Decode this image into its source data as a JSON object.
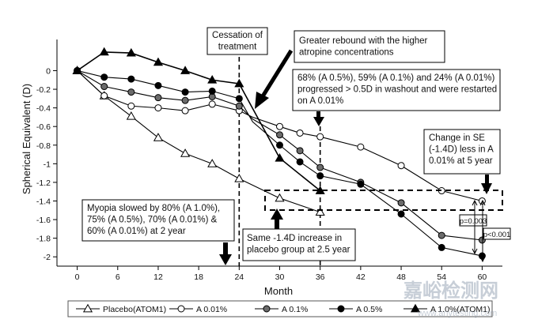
{
  "chart_data": {
    "type": "line",
    "xlabel": "Month",
    "ylabel": "Spherical Equivalent (D)",
    "xlim": [
      -3,
      63
    ],
    "ylim": [
      -2.1,
      0.25
    ],
    "x_ticks": [
      0,
      6,
      12,
      18,
      24,
      30,
      36,
      42,
      48,
      54,
      60
    ],
    "y_ticks": [
      0,
      -0.2,
      -0.4,
      -0.6,
      -0.8,
      -1,
      -1.2,
      -1.4,
      -1.6,
      -1.8,
      -2
    ],
    "y_tick_labels": [
      "0",
      "-0.2",
      "-0.4",
      "-0.6",
      "-0.8",
      "-1",
      "-1.2",
      "-1.4",
      "-1.6",
      "-1.8",
      "-2"
    ],
    "grid": false,
    "legend_position": "bottom",
    "series": [
      {
        "name": "Placebo(ATOM1)",
        "marker": "triangle-open",
        "x": [
          0,
          4,
          8,
          12,
          16,
          20,
          24,
          30,
          36
        ],
        "y": [
          0,
          -0.27,
          -0.49,
          -0.72,
          -0.89,
          -1.0,
          -1.16,
          -1.37,
          -1.52
        ]
      },
      {
        "name": "A 0.01%",
        "marker": "circle-open",
        "x": [
          0,
          4,
          8,
          12,
          16,
          20,
          24,
          26,
          30,
          33,
          36,
          42,
          48,
          54,
          60
        ],
        "y": [
          0,
          -0.27,
          -0.38,
          -0.4,
          -0.43,
          -0.36,
          -0.43,
          -0.5,
          -0.6,
          -0.67,
          -0.71,
          -0.82,
          -1.02,
          -1.29,
          -1.4
        ]
      },
      {
        "name": "A 0.1%",
        "marker": "circle-gray",
        "x": [
          0,
          4,
          8,
          12,
          16,
          20,
          24,
          26,
          30,
          33,
          36,
          42,
          48,
          54,
          60
        ],
        "y": [
          0,
          -0.17,
          -0.23,
          -0.29,
          -0.32,
          -0.28,
          -0.38,
          -0.52,
          -0.69,
          -0.86,
          -1.04,
          -1.2,
          -1.42,
          -1.77,
          -1.82
        ]
      },
      {
        "name": "A 0.5%",
        "marker": "circle-filled",
        "x": [
          0,
          4,
          8,
          12,
          16,
          20,
          24,
          26,
          30,
          33,
          36,
          42,
          48,
          54,
          60
        ],
        "y": [
          0,
          -0.07,
          -0.09,
          -0.16,
          -0.23,
          -0.22,
          -0.3,
          -0.55,
          -0.8,
          -0.98,
          -1.13,
          -1.22,
          -1.54,
          -1.9,
          -1.99
        ]
      },
      {
        "name": "A 1.0%(ATOM1)",
        "marker": "triangle-filled",
        "x": [
          0,
          4,
          8,
          12,
          16,
          20,
          24,
          30,
          36
        ],
        "y": [
          0,
          0.2,
          0.19,
          0.09,
          0.0,
          -0.1,
          -0.14,
          -0.94,
          -1.29
        ]
      }
    ],
    "annotations": {
      "cessation": "Cessation of\ntreatment",
      "rebound": "Greater rebound with the higher\natropine concentrations",
      "washout": "68% (A 0.5%), 59% (A 0.1%) and 24% (A 0.01%)\nprogressed > 0.5D in washout and were restarted\non A 0.01%",
      "change_se": "Change in SE\n(-1.4D) less in A\n0.01% at 5 year",
      "myopia_slowed": "Myopia slowed by 80% (A 1.0%),\n75% (A 0.5%), 70% (A 0.01%) &\n60% (A 0.01%) at 2 year",
      "placebo_same": "Same -1.4D increase in\nplacebo group at 2.5 year",
      "p1": "p=0.003",
      "p2": "p<0.001"
    }
  },
  "watermark": {
    "text_cn": "嘉峪检测网",
    "text_url": "www.anytesting.com"
  }
}
